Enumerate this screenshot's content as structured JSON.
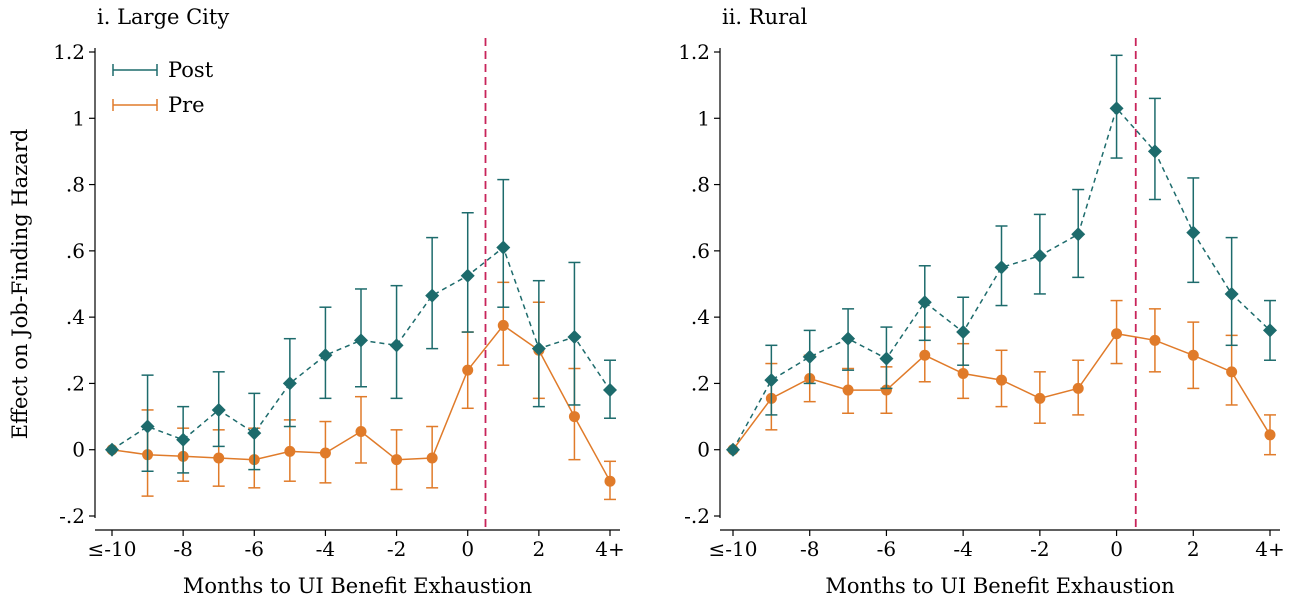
{
  "figure": {
    "ylabel": "Effect on Job-Finding Hazard",
    "xlabel": "Months to UI Benefit Exhaustion"
  },
  "legend": {
    "post_label": "Post",
    "pre_label": "Pre"
  },
  "chart_data": [
    {
      "type": "line",
      "title": "i. Large City",
      "xlabel": "Months to UI Benefit Exhaustion",
      "ylabel": "Effect on Job-Finding Hazard",
      "x": [
        -10,
        -9,
        -8,
        -7,
        -6,
        -5,
        -4,
        -3,
        -2,
        -1,
        0,
        1,
        2,
        3,
        4
      ],
      "x_ticks": [
        -10,
        -8,
        -6,
        -4,
        -2,
        0,
        2,
        4
      ],
      "x_tick_labels": [
        "≤-10",
        "-8",
        "-6",
        "-4",
        "-2",
        "0",
        "2",
        "4+"
      ],
      "xlim": [
        -10,
        4
      ],
      "ylim": [
        -0.2,
        1.2
      ],
      "y_ticks": [
        -0.2,
        0,
        0.2,
        0.4,
        0.6,
        0.8,
        1,
        1.2
      ],
      "y_tick_labels": [
        "-.2",
        "0",
        ".2",
        ".4",
        ".6",
        ".8",
        "1",
        "1.2"
      ],
      "vline": 0.5,
      "grid": false,
      "legend_position": "top-left",
      "series": [
        {
          "name": "Post",
          "color": "#1d6b6c",
          "marker": "diamond",
          "line_style": "dashed",
          "values": [
            0,
            0.07,
            0.03,
            0.12,
            0.05,
            0.2,
            0.285,
            0.33,
            0.315,
            0.465,
            0.525,
            0.61,
            0.305,
            0.34,
            0.18
          ],
          "ci_low": [
            0,
            -0.065,
            -0.07,
            0.01,
            -0.06,
            0.07,
            0.155,
            0.19,
            0.155,
            0.305,
            0.355,
            0.43,
            0.13,
            0.135,
            0.095
          ],
          "ci_high": [
            0,
            0.225,
            0.13,
            0.235,
            0.17,
            0.335,
            0.43,
            0.485,
            0.495,
            0.64,
            0.715,
            0.815,
            0.51,
            0.565,
            0.27
          ]
        },
        {
          "name": "Pre",
          "color": "#e07b2a",
          "marker": "circle",
          "line_style": "solid",
          "values": [
            0,
            -0.015,
            -0.02,
            -0.025,
            -0.03,
            -0.005,
            -0.01,
            0.055,
            -0.03,
            -0.025,
            0.24,
            0.375,
            0.3,
            0.1,
            -0.095
          ],
          "ci_low": [
            0,
            -0.14,
            -0.095,
            -0.11,
            -0.115,
            -0.095,
            -0.1,
            -0.04,
            -0.12,
            -0.115,
            0.125,
            0.255,
            0.155,
            -0.03,
            -0.15
          ],
          "ci_high": [
            0,
            0.12,
            0.065,
            0.06,
            0.065,
            0.09,
            0.085,
            0.16,
            0.06,
            0.07,
            0.355,
            0.505,
            0.445,
            0.245,
            -0.035
          ]
        }
      ]
    },
    {
      "type": "line",
      "title": "ii. Rural",
      "xlabel": "Months to UI Benefit Exhaustion",
      "ylabel": "",
      "x": [
        -10,
        -9,
        -8,
        -7,
        -6,
        -5,
        -4,
        -3,
        -2,
        -1,
        0,
        1,
        2,
        3,
        4
      ],
      "x_ticks": [
        -10,
        -8,
        -6,
        -4,
        -2,
        0,
        2,
        4
      ],
      "x_tick_labels": [
        "≤-10",
        "-8",
        "-6",
        "-4",
        "-2",
        "0",
        "2",
        "4+"
      ],
      "xlim": [
        -10,
        4
      ],
      "ylim": [
        -0.2,
        1.2
      ],
      "y_ticks": [
        -0.2,
        0,
        0.2,
        0.4,
        0.6,
        0.8,
        1,
        1.2
      ],
      "y_tick_labels": [
        "-.2",
        "0",
        ".2",
        ".4",
        ".6",
        ".8",
        "1",
        "1.2"
      ],
      "vline": 0.5,
      "grid": false,
      "series": [
        {
          "name": "Post",
          "color": "#1d6b6c",
          "marker": "diamond",
          "line_style": "dashed",
          "values": [
            0,
            0.21,
            0.28,
            0.335,
            0.275,
            0.445,
            0.355,
            0.55,
            0.585,
            0.65,
            1.03,
            0.9,
            0.655,
            0.47,
            0.36
          ],
          "ci_low": [
            0,
            0.105,
            0.2,
            0.24,
            0.185,
            0.33,
            0.255,
            0.435,
            0.47,
            0.52,
            0.88,
            0.755,
            0.505,
            0.315,
            0.27
          ],
          "ci_high": [
            0,
            0.315,
            0.36,
            0.425,
            0.37,
            0.555,
            0.46,
            0.675,
            0.71,
            0.785,
            1.19,
            1.06,
            0.82,
            0.64,
            0.45
          ]
        },
        {
          "name": "Pre",
          "color": "#e07b2a",
          "marker": "circle",
          "line_style": "solid",
          "values": [
            0,
            0.155,
            0.215,
            0.18,
            0.18,
            0.285,
            0.23,
            0.21,
            0.155,
            0.185,
            0.35,
            0.33,
            0.285,
            0.235,
            0.045
          ],
          "ci_low": [
            0,
            0.06,
            0.145,
            0.11,
            0.11,
            0.205,
            0.155,
            0.13,
            0.08,
            0.105,
            0.26,
            0.235,
            0.185,
            0.135,
            -0.015
          ],
          "ci_high": [
            0,
            0.26,
            0.285,
            0.245,
            0.25,
            0.37,
            0.32,
            0.3,
            0.235,
            0.27,
            0.45,
            0.425,
            0.385,
            0.345,
            0.105
          ]
        }
      ]
    }
  ]
}
